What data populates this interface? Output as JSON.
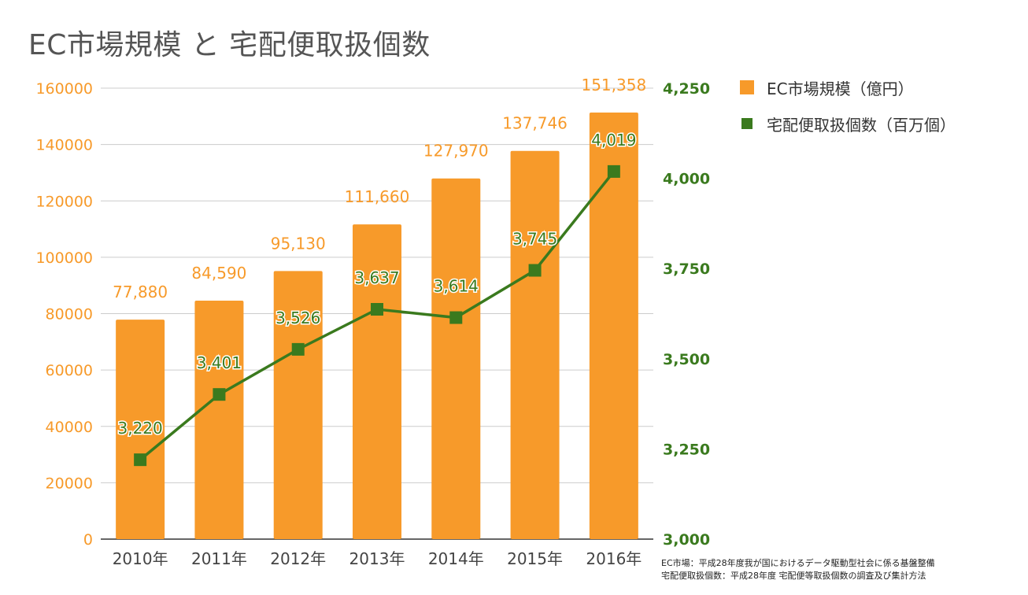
{
  "title": "EC市場規模 と 宅配便取扱個数",
  "source": {
    "line1": "EC市場：平成28年度我が国におけるデータ駆動型社会に係る基盤整備",
    "line2": "宅配便取扱個数：平成28年度 宅配便等取扱個数の調査及び集計方法"
  },
  "colors": {
    "bar": "#f79a2a",
    "line": "#3a7a1e",
    "left_axis": "#f79a2a",
    "right_axis": "#3a7a1e",
    "grid": "#cccccc"
  },
  "chart_data": {
    "type": "bar+line",
    "title": "EC市場規模 と 宅配便取扱個数",
    "categories": [
      "2010年",
      "2011年",
      "2012年",
      "2013年",
      "2014年",
      "2015年",
      "2016年"
    ],
    "series": [
      {
        "name": "EC市場規模（億円）",
        "type": "bar",
        "axis": "left",
        "values": [
          77880,
          84590,
          95130,
          111660,
          127970,
          137746,
          151358
        ],
        "labels": [
          "77,880",
          "84,590",
          "95,130",
          "111,660",
          "127,970",
          "137,746",
          "151,358"
        ]
      },
      {
        "name": "宅配便取扱個数（百万個）",
        "type": "line",
        "axis": "right",
        "values": [
          3220,
          3401,
          3526,
          3637,
          3614,
          3745,
          4019
        ],
        "labels": [
          "3,220",
          "3,401",
          "3,526",
          "3,637",
          "3,614",
          "3,745",
          "4,019"
        ]
      }
    ],
    "left_axis": {
      "ylim": [
        0,
        160000
      ],
      "ticks": [
        "0",
        "20000",
        "40000",
        "60000",
        "80000",
        "100000",
        "120000",
        "140000",
        "160000"
      ]
    },
    "right_axis": {
      "ylim": [
        3000,
        4250
      ],
      "ticks": [
        "3,000",
        "3,250",
        "3,500",
        "3,750",
        "4,000",
        "4,250"
      ]
    },
    "grid": true,
    "legend_position": "right"
  }
}
